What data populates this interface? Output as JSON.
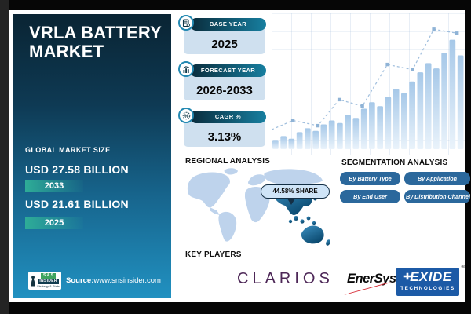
{
  "palette": {
    "sidebar_top": "#0a2433",
    "sidebar_bottom": "#2191c1",
    "badge_teal": "#2eac97",
    "stat_card_bg": "#cfe0ef",
    "stat_pill_dark": "#0a2c3c",
    "stat_pill_light": "#177fa0",
    "accent_circle_blue": "#2489b2",
    "segment_button_blue": "#2b689c",
    "map_light": "#bed3ec",
    "map_dark_top": "#3b8fc0",
    "map_dark_bottom": "#0b4a70",
    "bar_blue": "#a9c9e8",
    "trend_line_blue": "#9fbedd",
    "clarios_purple": "#4d2757",
    "enersys_red": "#d6232e",
    "exide_blue": "#1c5aa6"
  },
  "sidebar": {
    "title": "VRLA BATTERY MARKET",
    "market_size_label": "GLOBAL MARKET SIZE",
    "values": [
      {
        "amount": "USD 27.58 BILLION",
        "year": "2033"
      },
      {
        "amount": "USD 21.61 BILLION",
        "year": "2025"
      }
    ],
    "logo": {
      "line1": "S & S",
      "line2": "INSIDER",
      "line3": "Strategy & Stats"
    },
    "source_label": "Source:",
    "source_url": "www.snsinsider.com"
  },
  "stats": [
    {
      "label": "BASE YEAR",
      "value": "2025",
      "icon": "calendar-document-icon"
    },
    {
      "label": "FORECAST YEAR",
      "value": "2026-2033",
      "icon": "growth-chart-icon"
    },
    {
      "label": "CAGR %",
      "value": "3.13%",
      "icon": "percent-circle-icon"
    }
  ],
  "regional": {
    "heading": "REGIONAL ANALYSIS",
    "share_callout": "44.58% SHARE"
  },
  "segmentation": {
    "heading": "SEGMENTATION ANALYSIS",
    "buttons": [
      "By Battery Type",
      "By Application",
      "By End User",
      "By Distribution Channel"
    ]
  },
  "key_players": {
    "heading": "KEY PLAYERS",
    "reg": "®",
    "clarios": "CLARIOS",
    "enersys": "EnerSys",
    "exide_line1": "EXIDE",
    "exide_line2": "TECHNOLOGIES"
  },
  "chart_data": {
    "type": "bar",
    "title": "Decorative market growth trend (unlabeled axes)",
    "categories_note": "24 unlabeled periods rising left to right",
    "values": [
      7,
      10,
      8,
      13,
      16,
      14,
      19,
      22,
      20,
      26,
      24,
      31,
      36,
      33,
      40,
      46,
      43,
      52,
      59,
      66,
      62,
      74,
      84,
      72
    ],
    "line_series": {
      "name": "dashed trend line with square markers",
      "x_percent": [
        0,
        11,
        24,
        35,
        47,
        60,
        73,
        84,
        96
      ],
      "values": [
        15,
        22,
        18,
        38,
        33,
        65,
        61,
        92,
        89
      ]
    },
    "ylim": [
      0,
      100
    ],
    "grid": true,
    "legend": false
  }
}
